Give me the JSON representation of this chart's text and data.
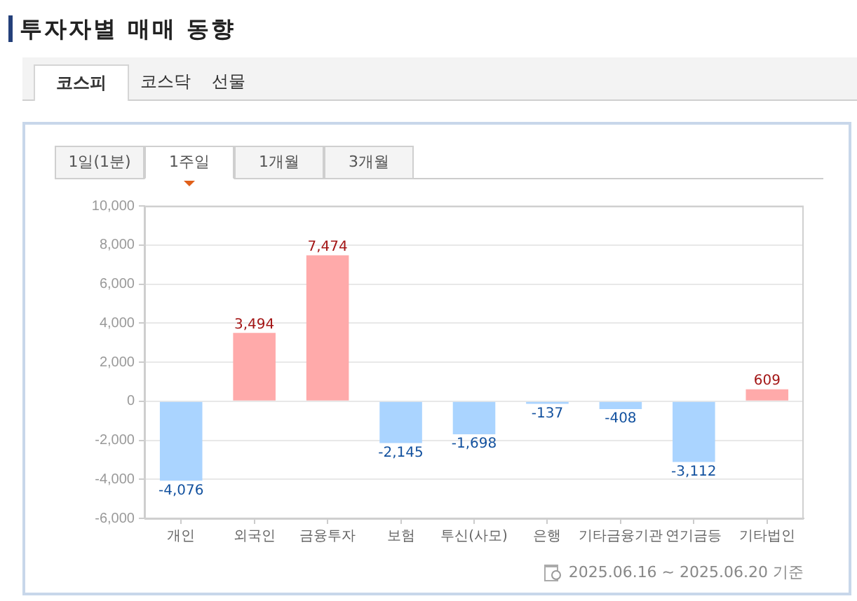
{
  "chart_data": {
    "type": "bar",
    "title": "투자자별 매매 동향",
    "categories": [
      "개인",
      "외국인",
      "금융투자",
      "보험",
      "투신(사모)",
      "은행",
      "기타금융기관",
      "연기금등",
      "기타법인"
    ],
    "values": [
      -4076,
      3494,
      7474,
      -2145,
      -1698,
      -137,
      -408,
      -3112,
      609
    ],
    "colors": [
      "#aad4ff",
      "#ffaaaa",
      "#ffaaaa",
      "#aad4ff",
      "#aad4ff",
      "#aad4ff",
      "#aad4ff",
      "#aad4ff",
      "#ffaaaa"
    ],
    "value_labels": [
      "-4,076",
      "3,494",
      "7,474",
      "-2,145",
      "-1,698",
      "-137",
      "-408",
      "-3,112",
      "609"
    ],
    "ylim": [
      -6000,
      10000
    ],
    "yticks": [
      {
        "value": -6000,
        "label": "-6,000"
      },
      {
        "value": -4000,
        "label": "-4,000"
      },
      {
        "value": -2000,
        "label": "-2,000"
      },
      0,
      {
        "value": 2000,
        "label": "2,000"
      },
      {
        "value": 4000,
        "label": "4,000"
      },
      {
        "value": 6000,
        "label": "6,000"
      },
      {
        "value": 8000,
        "label": "8,000"
      },
      {
        "value": 10000,
        "label": "10,000"
      }
    ],
    "grid": "y",
    "annotations": [
      "코스피",
      "코스닥",
      "선물",
      "1일(1분)",
      "1주일",
      "1개월",
      "3개월",
      "2025.06.16 ~ 2025.06.20 기준"
    ]
  }
}
